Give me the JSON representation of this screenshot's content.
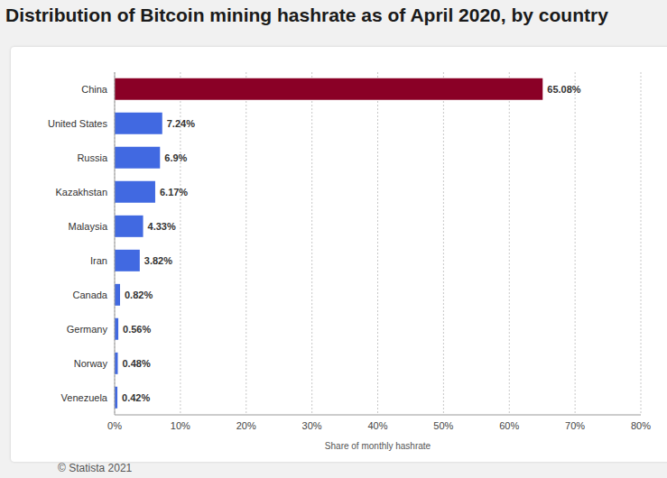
{
  "chart_data": {
    "type": "bar",
    "title": "Distribution of Bitcoin mining hashrate as of April 2020, by country",
    "x_label": "Share of monthly hashrate",
    "annotations": [
      "© Statista 2021"
    ],
    "orientation": "horizontal",
    "categories": [
      "China",
      "United States",
      "Russia",
      "Kazakhstan",
      "Malaysia",
      "Iran",
      "Canada",
      "Germany",
      "Norway",
      "Venezuela"
    ],
    "values": [
      65.08,
      7.24,
      6.9,
      6.17,
      4.33,
      3.82,
      0.82,
      0.56,
      0.48,
      0.42
    ],
    "value_labels": [
      "65.08%",
      "7.24%",
      "6.9%",
      "6.17%",
      "4.33%",
      "3.82%",
      "0.82%",
      "0.56%",
      "0.48%",
      "0.42%"
    ],
    "colors": [
      "#8a0026",
      "#4169e1",
      "#4169e1",
      "#4169e1",
      "#4169e1",
      "#4169e1",
      "#4169e1",
      "#4169e1",
      "#4169e1",
      "#4169e1"
    ],
    "xlim": [
      0,
      80
    ],
    "xticks": [
      {
        "value": 0,
        "label": "0%"
      },
      {
        "value": 10,
        "label": "10%"
      },
      {
        "value": 20,
        "label": "20%"
      },
      {
        "value": 30,
        "label": "30%"
      },
      {
        "value": 40,
        "label": "40%"
      },
      {
        "value": 50,
        "label": "50%"
      },
      {
        "value": 60,
        "label": "60%"
      },
      {
        "value": 70,
        "label": "70%"
      },
      {
        "value": 80,
        "label": "80%"
      }
    ],
    "grid": true,
    "data_labels": true
  }
}
